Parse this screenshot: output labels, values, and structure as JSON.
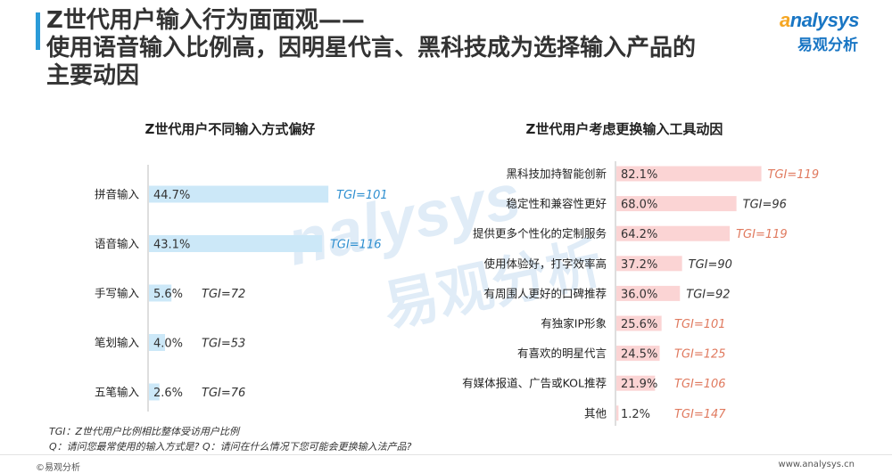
{
  "title_lines": [
    "Z世代用户输入行为面面观——",
    "使用语音输入比例高，因明星代言、黑科技成为选择输入产品的",
    "主要动因"
  ],
  "logo": {
    "en_accent": "a",
    "en_rest": "nalysys",
    "cn": "易观分析"
  },
  "watermark": {
    "en": "nalysys",
    "cn": "易观分析"
  },
  "chart_data": [
    {
      "type": "bar",
      "orientation": "horizontal",
      "title": "Z世代用户不同输入方式偏好",
      "categories": [
        "拼音输入",
        "语音输入",
        "手写输入",
        "笔划输入",
        "五笔输入"
      ],
      "values": [
        44.7,
        43.1,
        5.6,
        4.0,
        2.6
      ],
      "value_labels": [
        "44.7%",
        "43.1%",
        "5.6%",
        "4.0%",
        "2.6%"
      ],
      "tgi_labels": [
        "TGI=101",
        "TGI=116",
        "TGI=72",
        "TGI=53",
        "TGI=76"
      ],
      "tgi_values": [
        101,
        116,
        72,
        53,
        76
      ],
      "bar_color": "#cce8f8",
      "tgi_color": "#2f8fd0",
      "tgi_color_low": "#333333",
      "grid": false
    },
    {
      "type": "bar",
      "orientation": "horizontal",
      "title": "Z世代用户考虑更换输入工具动因",
      "categories": [
        "黑科技加持智能创新",
        "稳定性和兼容性更好",
        "提供更多个性化的定制服务",
        "使用体验好，打字效率高",
        "有周围人更好的口碑推荐",
        "有独家IP形象",
        "有喜欢的明星代言",
        "有媒体报道、广告或KOL推荐",
        "其他"
      ],
      "values": [
        82.1,
        68.0,
        64.2,
        37.2,
        36.0,
        25.6,
        24.5,
        21.9,
        1.2
      ],
      "value_labels": [
        "82.1%",
        "68.0%",
        "64.2%",
        "37.2%",
        "36.0%",
        "25.6%",
        "24.5%",
        "21.9%",
        "1.2%"
      ],
      "tgi_labels": [
        "TGI=119",
        "TGI=96",
        "TGI=119",
        "TGI=90",
        "TGI=92",
        "TGI=101",
        "TGI=125",
        "TGI=106",
        "TGI=147"
      ],
      "tgi_values": [
        119,
        96,
        119,
        90,
        92,
        101,
        125,
        106,
        147
      ],
      "bar_color": "#fbd4d4",
      "tgi_color": "#e07a5f",
      "tgi_color_low": "#333333",
      "grid": false
    }
  ],
  "footnotes": [
    "TGI：Z世代用户比例相比整体受访用户比例",
    "Q：请问您最常使用的输入方式是? Q：请问在什么情况下您可能会更换输入法产品?"
  ],
  "copyright": "©易观分析",
  "site": "www.analysys.cn"
}
